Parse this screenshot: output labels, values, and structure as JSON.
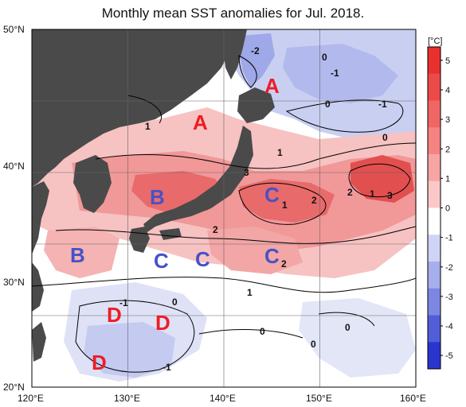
{
  "title": "Monthly mean SST anomalies for Jul. 2018.",
  "colors": {
    "land": "#4a4a4a",
    "warm1": "#fbe3e3",
    "warm2": "#f6b8b8",
    "warm3": "#f08a8a",
    "warm4": "#e85a5a",
    "cool1": "#e3e6f7",
    "cool2": "#bfc5ef",
    "cool3": "#9aa3e6",
    "label_red": "#ef1c24",
    "label_blue": "#4552c8"
  },
  "lat_labels": [
    "50°N",
    "40°N",
    "30°N",
    "20°N"
  ],
  "lon_labels": [
    "120°E",
    "130°E",
    "140°E",
    "150°E",
    "160°E"
  ],
  "colorbar": {
    "unit": "[°C]",
    "ticks": [
      "5",
      "4",
      "3",
      "2",
      "1",
      "0",
      "-1",
      "-2",
      "-3",
      "-4",
      "-5"
    ],
    "colors": [
      "#e8302e",
      "#ec4a48",
      "#f06664",
      "#f48382",
      "#f7a5a4",
      "#fbc8c7",
      "#ffffff",
      "#cfd3f5",
      "#a6aeec",
      "#7d87e2",
      "#525dd7",
      "#2a35cd"
    ]
  },
  "region_labels": [
    {
      "text": "A",
      "color": "red"
    },
    {
      "text": "A",
      "color": "red"
    },
    {
      "text": "B",
      "color": "blue"
    },
    {
      "text": "B",
      "color": "blue"
    },
    {
      "text": "C",
      "color": "blue"
    },
    {
      "text": "C",
      "color": "blue"
    },
    {
      "text": "C",
      "color": "blue"
    },
    {
      "text": "C",
      "color": "blue"
    },
    {
      "text": "D",
      "color": "red"
    },
    {
      "text": "D",
      "color": "red"
    },
    {
      "text": "D",
      "color": "red"
    }
  ],
  "contour_labels": [
    "-2",
    "0",
    "-1",
    "0",
    "-1",
    "0",
    "1",
    "1",
    "3",
    "2",
    "1",
    "3",
    "2",
    "1",
    "2",
    "2",
    "1",
    "-1",
    "0",
    "0",
    "0",
    "0",
    "-1"
  ]
}
